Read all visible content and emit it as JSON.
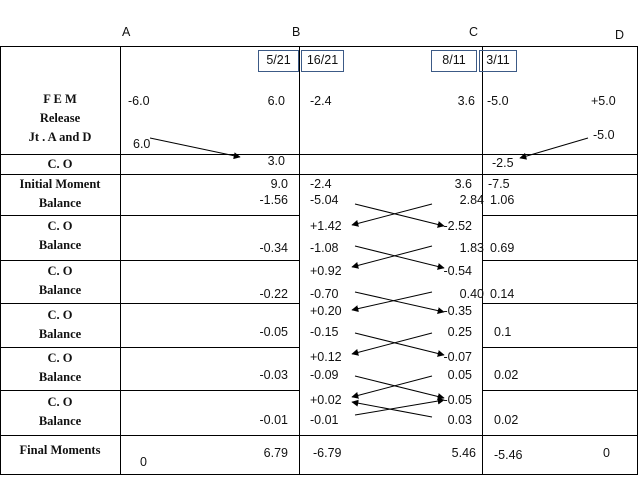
{
  "joints": [
    "A",
    "B",
    "C",
    "D"
  ],
  "distribution_factors": {
    "b_left": "5/21",
    "b_right": "16/21",
    "c_left": "8/11",
    "c_right": "3/11"
  },
  "row_labels": {
    "fem": [
      "F E M",
      "Release",
      "Jt . A and D"
    ],
    "co_first": "C. O",
    "initial": [
      "Initial Moment",
      "Balance"
    ],
    "co_balance": [
      "C. O",
      "Balance"
    ],
    "final": "Final Moments"
  },
  "fem": {
    "a": "-6.0",
    "b_left": "6.0",
    "b_right": "-2.4",
    "c_left": "3.6",
    "c_right": "-5.0",
    "d": "+5.0"
  },
  "release": {
    "a": "6.0",
    "d": "-5.0"
  },
  "co_first": {
    "b_left": "3.0",
    "c_right": "-2.5"
  },
  "initial_moment": {
    "b_left": "9.0",
    "b_right": "-2.4",
    "c_left": "3.6",
    "c_right": "-7.5"
  },
  "balance_1": {
    "b_left": "-1.56",
    "b_right": "-5.04",
    "c_left": "2.84",
    "c_right": "1.06"
  },
  "cycles": [
    {
      "co_b": "+1.42",
      "co_c": "-2.52",
      "bal_b_left": "-0.34",
      "bal_b_right": "-1.08",
      "bal_c_left": "1.83",
      "bal_c_right": "0.69"
    },
    {
      "co_b": "+0.92",
      "co_c": "-0.54",
      "bal_b_left": "-0.22",
      "bal_b_right": "-0.70",
      "bal_c_left": "0.40",
      "bal_c_right": "0.14"
    },
    {
      "co_b": "+0.20",
      "co_c": "-0.35",
      "bal_b_left": "-0.05",
      "bal_b_right": "-0.15",
      "bal_c_left": "0.25",
      "bal_c_right": "0.1"
    },
    {
      "co_b": "+0.12",
      "co_c": "-0.07",
      "bal_b_left": "-0.03",
      "bal_b_right": "-0.09",
      "bal_c_left": "0.05",
      "bal_c_right": "0.02"
    },
    {
      "co_b": "+0.02",
      "co_c": "-0.05",
      "bal_b_left": "-0.01",
      "bal_b_right": "-0.01",
      "bal_c_left": "0.03",
      "bal_c_right": "0.02"
    }
  ],
  "final_moments": {
    "a": "0",
    "b_left": "6.79",
    "b_right": "-6.79",
    "c_left": "5.46",
    "c_right": "-5.46",
    "d": "0"
  },
  "colors": {
    "line": "#000000",
    "box_border": "#3c5a86",
    "text": "#111111"
  }
}
